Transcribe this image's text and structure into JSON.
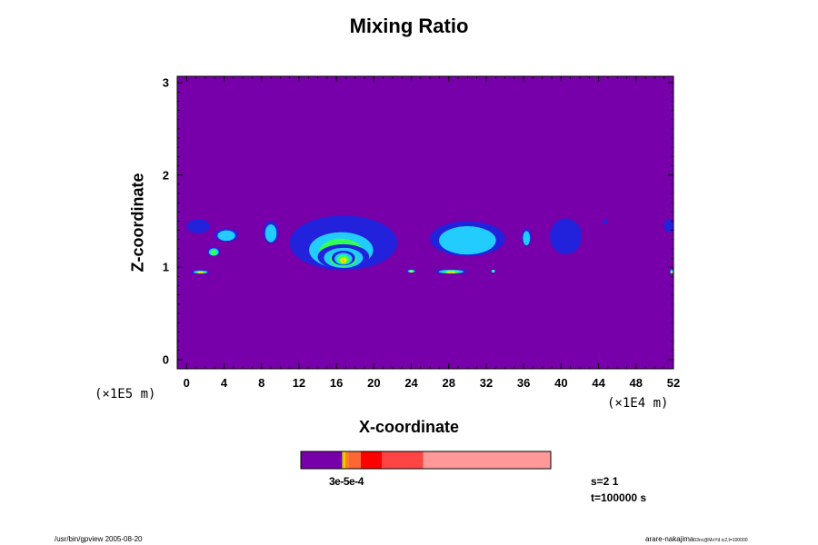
{
  "chart_data": {
    "type": "heatmap",
    "title": "Mixing Ratio",
    "xlabel": "X-coordinate",
    "ylabel": "Z-coordinate",
    "x_unit": "(×1E4 m)",
    "y_unit": "(×1E5 m)",
    "xlim": [
      -1,
      52
    ],
    "ylim": [
      -0.1,
      3.07
    ],
    "x_ticks": [
      "0",
      "4",
      "8",
      "12",
      "16",
      "20",
      "24",
      "28",
      "32",
      "36",
      "40",
      "44",
      "48",
      "52"
    ],
    "x_tick_values": [
      0,
      4,
      8,
      12,
      16,
      20,
      24,
      28,
      32,
      36,
      40,
      44,
      48,
      52
    ],
    "y_ticks": [
      "0",
      "1",
      "2",
      "3"
    ],
    "y_tick_values": [
      0,
      1,
      2,
      3
    ],
    "background_color": "#7700aa",
    "features": [
      {
        "x": [
          0,
          2.5
        ],
        "z": [
          1.37,
          1.52
        ],
        "level": 1
      },
      {
        "x": [
          3,
          5.5
        ],
        "z": [
          1.28,
          1.42
        ],
        "level": 2
      },
      {
        "x": [
          2.2,
          3.6
        ],
        "z": [
          1.12,
          1.22
        ],
        "level": 3
      },
      {
        "x": [
          0.5,
          2.5
        ],
        "z": [
          0.93,
          0.97
        ],
        "level": 5
      },
      {
        "x": [
          8.2,
          9.8
        ],
        "z": [
          1.26,
          1.5
        ],
        "level": 2
      },
      {
        "x": [
          11,
          22.5
        ],
        "z": [
          0.97,
          1.56
        ],
        "level": 1
      },
      {
        "x": [
          12,
          21
        ],
        "z": [
          0.97,
          1.45
        ],
        "level": 3
      },
      {
        "x": [
          14,
          19.5
        ],
        "z": [
          0.98,
          1.25
        ],
        "level": 5
      },
      {
        "x": [
          15.5,
          18
        ],
        "z": [
          1.02,
          1.18
        ],
        "level": 6
      },
      {
        "x": [
          23.5,
          24.5
        ],
        "z": [
          0.94,
          0.98
        ],
        "level": 4
      },
      {
        "x": [
          26,
          34
        ],
        "z": [
          1.12,
          1.5
        ],
        "level": 2
      },
      {
        "x": [
          26.5,
          30
        ],
        "z": [
          0.93,
          0.98
        ],
        "level": 5
      },
      {
        "x": [
          32.5,
          33
        ],
        "z": [
          0.94,
          0.98
        ],
        "level": 3
      },
      {
        "x": [
          35.8,
          36.8
        ],
        "z": [
          1.23,
          1.42
        ],
        "level": 2
      },
      {
        "x": [
          38.8,
          42.2
        ],
        "z": [
          1.14,
          1.53
        ],
        "level": 1
      },
      {
        "x": [
          44.5,
          45
        ],
        "z": [
          1.47,
          1.52
        ],
        "level": 1
      },
      {
        "x": [
          51,
          52
        ],
        "z": [
          1.38,
          1.52
        ],
        "level": 1
      },
      {
        "x": [
          51.6,
          52
        ],
        "z": [
          0.93,
          0.98
        ],
        "level": 4
      }
    ],
    "levels": [
      {
        "color": "#7700aa"
      },
      {
        "color": "#2222dd"
      },
      {
        "color": "#22ccff"
      },
      {
        "color": "#33ff55"
      },
      {
        "color": "#eeee00"
      },
      {
        "color": "#ffbb00"
      },
      {
        "color": "#ff6600"
      }
    ],
    "colorbar": {
      "segments": [
        {
          "color": "#7700aa",
          "fraction": 0.165
        },
        {
          "color": "#aaaa00",
          "fraction": 0.005
        },
        {
          "color": "#ffcc00",
          "fraction": 0.007
        },
        {
          "color": "#ff8800",
          "fraction": 0.013
        },
        {
          "color": "#ff6633",
          "fraction": 0.05
        },
        {
          "color": "#ff0000",
          "fraction": 0.085
        },
        {
          "color": "#ff4444",
          "fraction": 0.165
        },
        {
          "color": "#ff9999",
          "fraction": 0.51
        }
      ],
      "label": "3e-5e-4"
    }
  },
  "info": {
    "s": "s=2 1",
    "t": "t=100000 s"
  },
  "footer": {
    "left": "/usr/bin/gpview 2005-08-20",
    "right": "arare-nakajima",
    "right_small": "03nc@MoYd.ic2,t=100000"
  }
}
